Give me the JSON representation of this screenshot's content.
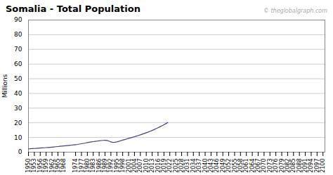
{
  "chart_data": {
    "type": "line",
    "title": "Somalia - Total Population",
    "ylabel": "Millions",
    "annotation": "© theglobalgraph.com",
    "color": "#483D8B",
    "grid": "y",
    "xlim": [
      1950,
      2101
    ],
    "xticks": [
      1950,
      1953,
      1956,
      1959,
      1962,
      1965,
      1968,
      1974,
      1977,
      1980,
      1983,
      1986,
      1989,
      1992,
      1995,
      1998,
      2001,
      2004,
      2007,
      2010,
      2013,
      2016,
      2019,
      2022,
      2025,
      2028,
      2031,
      2034,
      2037,
      2040,
      2043,
      2046,
      2049,
      2052,
      2055,
      2058,
      2061,
      2064,
      2067,
      2070,
      2073,
      2076,
      2079,
      2082,
      2085,
      2088,
      2091,
      2094,
      2097,
      2100
    ],
    "ylim": [
      0,
      90
    ],
    "yticks": [
      0,
      10,
      20,
      30,
      40,
      50,
      60,
      70,
      80,
      90
    ],
    "x": [
      1950,
      1951,
      1952,
      1953,
      1954,
      1955,
      1956,
      1957,
      1958,
      1959,
      1960,
      1961,
      1962,
      1963,
      1964,
      1965,
      1966,
      1967,
      1968,
      1969,
      1970,
      1971,
      1972,
      1973,
      1974,
      1975,
      1976,
      1977,
      1978,
      1979,
      1980,
      1981,
      1982,
      1983,
      1984,
      1985,
      1986,
      1987,
      1988,
      1989,
      1990,
      1991,
      1992,
      1993,
      1994,
      1995,
      1996,
      1997,
      1998,
      1999,
      2000,
      2001,
      2002,
      2003,
      2004,
      2005,
      2006,
      2007,
      2008,
      2009,
      2010,
      2011,
      2012,
      2013,
      2014,
      2015,
      2016,
      2017,
      2018,
      2019,
      2020,
      2021
    ],
    "values": [
      2.264,
      2.343,
      2.425,
      2.511,
      2.6,
      2.692,
      2.789,
      2.889,
      2.993,
      3.1,
      3.211,
      3.327,
      3.447,
      3.571,
      3.7,
      3.835,
      3.974,
      4.111,
      4.241,
      4.362,
      4.487,
      4.627,
      4.775,
      4.93,
      5.1,
      5.28,
      5.49,
      5.73,
      5.98,
      6.21,
      6.49,
      6.73,
      6.96,
      7.17,
      7.36,
      7.55,
      7.73,
      7.9,
      8.02,
      8.04,
      7.99,
      7.56,
      6.96,
      6.67,
      6.73,
      7.01,
      7.37,
      7.77,
      8.18,
      8.58,
      8.97,
      9.36,
      9.74,
      10.12,
      10.52,
      10.93,
      11.36,
      11.8,
      12.26,
      12.72,
      13.2,
      13.7,
      14.24,
      14.8,
      15.39,
      16.0,
      16.63,
      17.29,
      17.97,
      18.7,
      19.44,
      20.22
    ]
  }
}
